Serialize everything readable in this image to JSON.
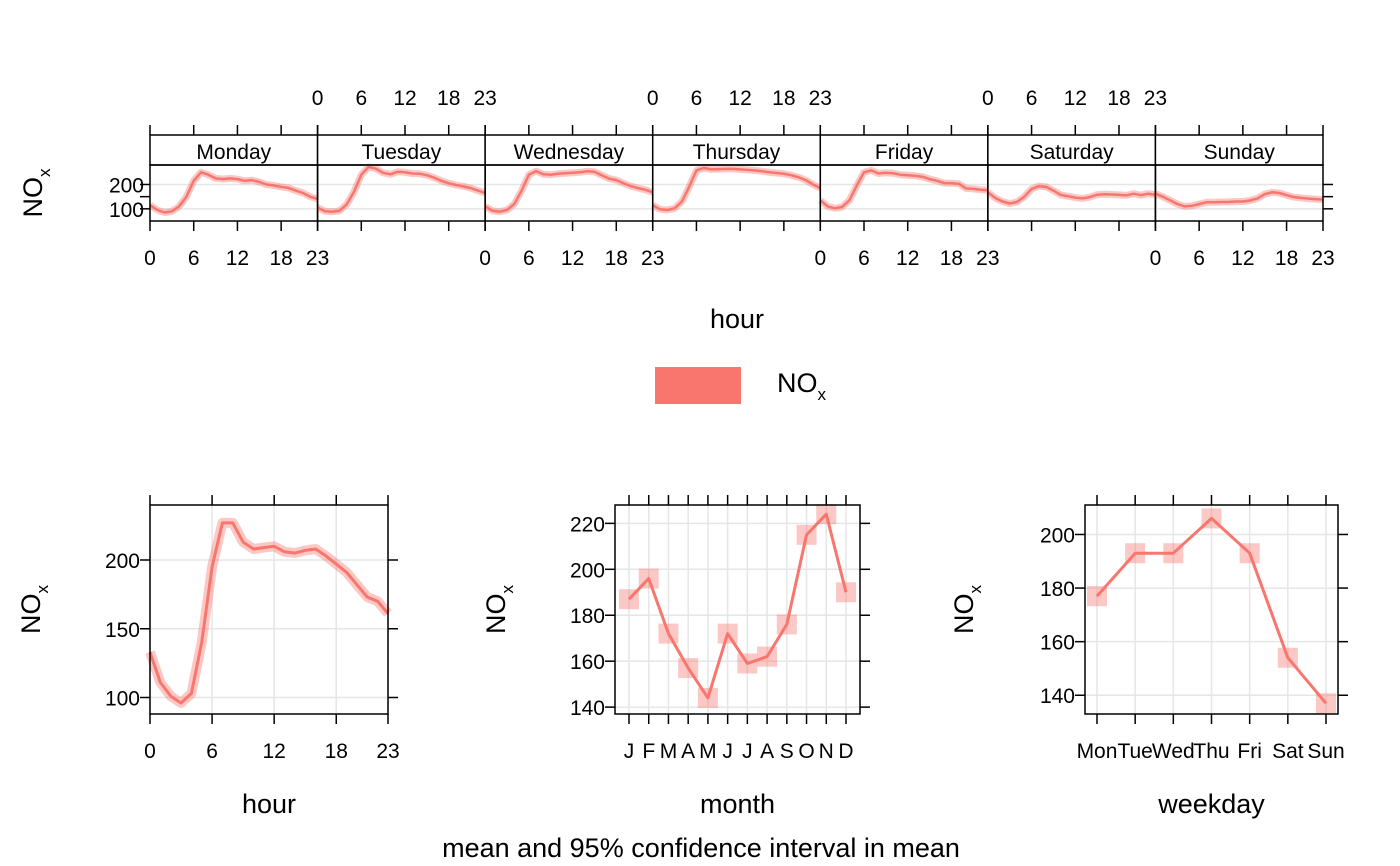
{
  "colors": {
    "series": "#F8766D",
    "band": "#F8766D",
    "grid": "#E6E6E6",
    "strip_bg": "#FFFFFF"
  },
  "legend": {
    "label": "NO",
    "label_sub": "x"
  },
  "footer": "mean and 95% confidence interval in mean",
  "chart_data": [
    {
      "id": "day_hour",
      "type": "line",
      "xlabel": "hour",
      "ylabel": "NO",
      "ylabel_sub": "x",
      "xlim": [
        0,
        23
      ],
      "ylim": [
        50,
        280
      ],
      "yticks": [
        100,
        200
      ],
      "xticks": [
        0,
        6,
        12,
        18,
        23
      ],
      "panels": [
        {
          "label": "Monday",
          "values": [
            115,
            95,
            85,
            90,
            110,
            150,
            215,
            250,
            240,
            225,
            222,
            225,
            222,
            215,
            218,
            210,
            200,
            196,
            190,
            186,
            175,
            165,
            150,
            140
          ]
        },
        {
          "label": "Tuesday",
          "values": [
            105,
            90,
            88,
            92,
            118,
            170,
            240,
            272,
            265,
            248,
            242,
            252,
            250,
            245,
            244,
            238,
            228,
            215,
            205,
            198,
            192,
            185,
            175,
            165
          ]
        },
        {
          "label": "Wednesday",
          "values": [
            110,
            92,
            88,
            95,
            120,
            175,
            240,
            255,
            242,
            240,
            244,
            246,
            248,
            250,
            254,
            252,
            238,
            224,
            218,
            205,
            193,
            185,
            178,
            168
          ]
        },
        {
          "label": "Thursday",
          "values": [
            115,
            98,
            95,
            102,
            130,
            190,
            258,
            268,
            262,
            263,
            264,
            264,
            262,
            260,
            258,
            254,
            250,
            247,
            244,
            238,
            230,
            218,
            200,
            185
          ]
        },
        {
          "label": "Friday",
          "values": [
            135,
            110,
            102,
            108,
            135,
            195,
            250,
            258,
            245,
            248,
            246,
            240,
            238,
            236,
            232,
            222,
            215,
            206,
            205,
            203,
            184,
            182,
            178,
            176
          ]
        },
        {
          "label": "Saturday",
          "values": [
            168,
            145,
            130,
            122,
            128,
            150,
            182,
            193,
            190,
            175,
            157,
            152,
            146,
            143,
            148,
            158,
            160,
            159,
            157,
            155,
            162,
            156,
            162,
            158
          ]
        },
        {
          "label": "Sunday",
          "values": [
            162,
            150,
            135,
            120,
            110,
            112,
            120,
            127,
            127,
            128,
            128,
            130,
            130,
            134,
            143,
            160,
            168,
            165,
            156,
            148,
            145,
            142,
            140,
            138
          ]
        }
      ]
    },
    {
      "id": "hour",
      "type": "line",
      "xlabel": "hour",
      "ylabel": "NO",
      "ylabel_sub": "x",
      "xlim": [
        0,
        23
      ],
      "ylim": [
        88,
        240
      ],
      "yticks": [
        100,
        150,
        200
      ],
      "xticks": [
        0,
        6,
        12,
        18,
        23
      ],
      "x": [
        0,
        1,
        2,
        3,
        4,
        5,
        6,
        7,
        8,
        9,
        10,
        11,
        12,
        13,
        14,
        15,
        16,
        17,
        18,
        19,
        20,
        21,
        22,
        23
      ],
      "values": [
        133,
        111,
        101,
        96,
        103,
        140,
        195,
        227,
        227,
        213,
        208,
        209,
        210,
        206,
        205,
        207,
        208,
        203,
        197,
        191,
        182,
        173,
        170,
        161
      ]
    },
    {
      "id": "month",
      "type": "line",
      "xlabel": "month",
      "ylabel": "NO",
      "ylabel_sub": "x",
      "ylim": [
        137,
        228
      ],
      "yticks": [
        140,
        160,
        180,
        200,
        220
      ],
      "categories": [
        "J",
        "F",
        "M",
        "A",
        "M",
        "J",
        "J",
        "A",
        "S",
        "O",
        "N",
        "D"
      ],
      "values": [
        187,
        196,
        172,
        157,
        144,
        172,
        159,
        162,
        176,
        215,
        224,
        190
      ]
    },
    {
      "id": "weekday",
      "type": "line",
      "xlabel": "weekday",
      "ylabel": "NO",
      "ylabel_sub": "x",
      "ylim": [
        133,
        211
      ],
      "yticks": [
        140,
        160,
        180,
        200
      ],
      "categories": [
        "Mon",
        "Tue",
        "Wed",
        "Thu",
        "Fri",
        "Sat",
        "Sun"
      ],
      "values": [
        177,
        193,
        193,
        206,
        193,
        154,
        137
      ]
    }
  ]
}
